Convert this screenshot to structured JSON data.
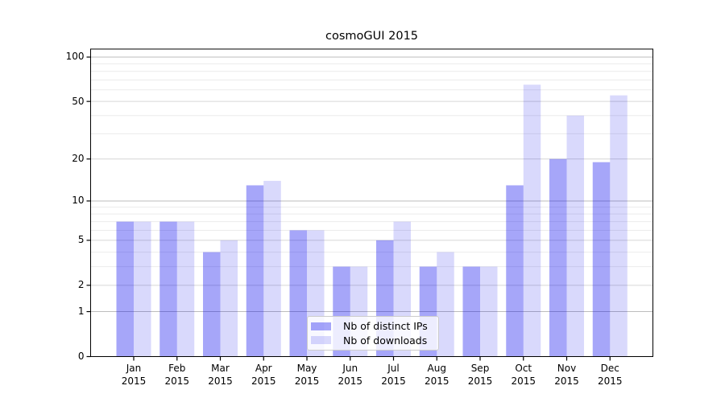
{
  "figure": {
    "background_color": "#ffffff",
    "text_color": "#000000"
  },
  "chart_data": {
    "type": "bar",
    "title": "cosmoGUI 2015",
    "xlabel": "",
    "ylabel": "",
    "yscale": "log1p",
    "ylim": [
      0,
      113
    ],
    "yticks": [
      0,
      1,
      2,
      5,
      10,
      20,
      50,
      100
    ],
    "minor_gridlines": [
      3,
      4,
      6,
      7,
      8,
      9,
      30,
      40,
      60,
      70,
      80,
      90
    ],
    "grid": true,
    "categories": [
      "Jan",
      "Feb",
      "Mar",
      "Apr",
      "May",
      "Jun",
      "Jul",
      "Aug",
      "Sep",
      "Oct",
      "Nov",
      "Dec"
    ],
    "x_year_label": "2015",
    "series": [
      {
        "name": "Nb of distinct IPs",
        "color": "#a6a6f8",
        "color_base": "#0000ee",
        "alpha": 0.35,
        "values": [
          7,
          7,
          4,
          13,
          6,
          3,
          5,
          3,
          3,
          13,
          20,
          19
        ]
      },
      {
        "name": "Nb of downloads",
        "color": "#dadafb",
        "color_base": "#0000ee",
        "alpha": 0.15,
        "values": [
          7,
          7,
          5,
          14,
          6,
          3,
          7,
          4,
          3,
          65,
          40,
          55
        ]
      }
    ],
    "legend_position": "lower center",
    "gridline_color_decade": "#bdbdbd",
    "gridline_color_major": "#d6d6d6",
    "gridline_color_minor": "#ebebeb",
    "spine_color": "#000000"
  }
}
